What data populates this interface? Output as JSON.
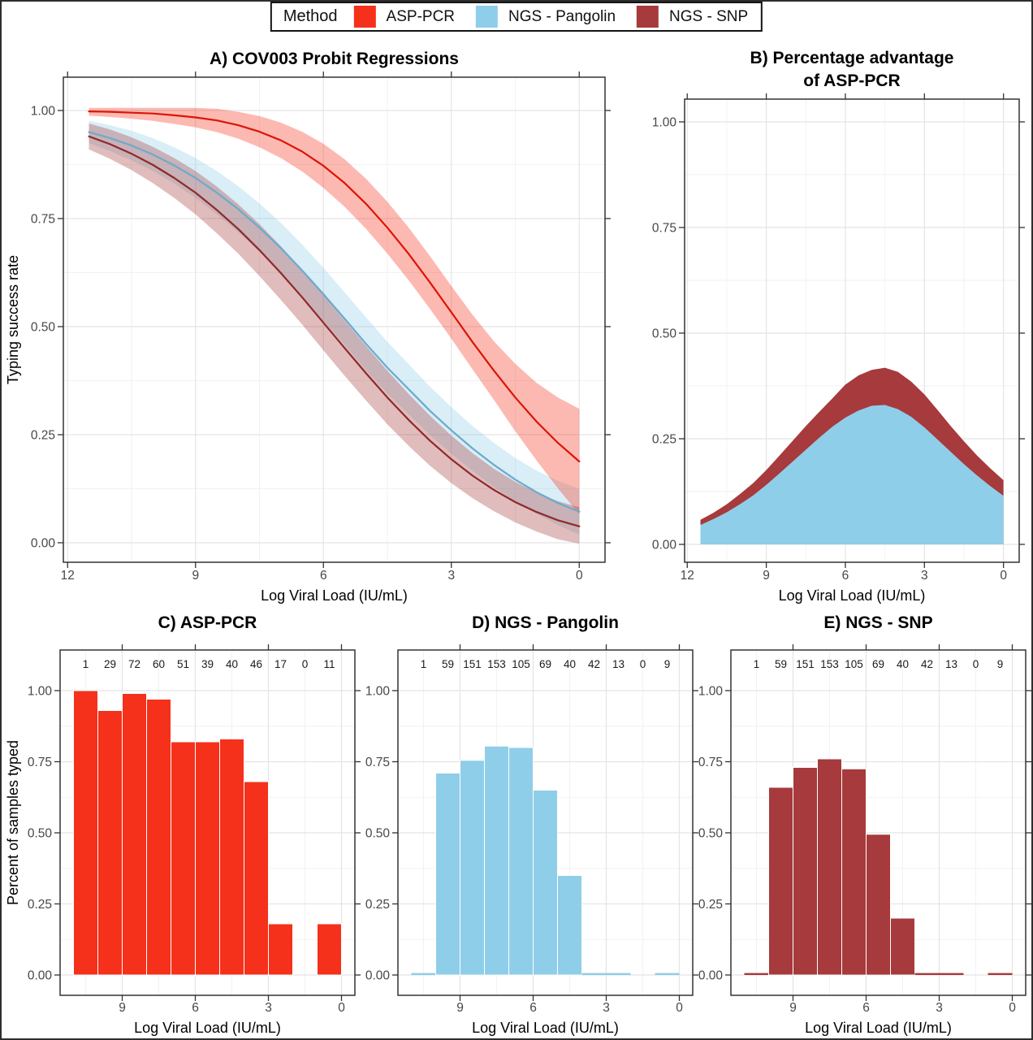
{
  "figure": {
    "legend": {
      "title": "Method",
      "items": [
        {
          "label": "ASP-PCR",
          "color": "#F5311B"
        },
        {
          "label": "NGS - Pangolin",
          "color": "#8FCEE8"
        },
        {
          "label": "NGS - SNP",
          "color": "#A63A3C"
        }
      ]
    }
  },
  "chart_data": [
    {
      "id": "A",
      "type": "line",
      "title": "A) COV003 Probit Regressions",
      "xlabel": "Log Viral Load (IU/mL)",
      "ylabel": "Typing success rate",
      "xlim": [
        12,
        0
      ],
      "ylim": [
        0,
        1
      ],
      "xticks": [
        12,
        9,
        6,
        3,
        0
      ],
      "yticks": [
        0,
        0.25,
        0.5,
        0.75,
        1
      ],
      "grid": true,
      "x": [
        11.5,
        11,
        10.5,
        10,
        9.5,
        9,
        8.5,
        8,
        7.5,
        7,
        6.5,
        6,
        5.5,
        5,
        4.5,
        4,
        3.5,
        3,
        2.5,
        2,
        1.5,
        1,
        0.5,
        0
      ],
      "series": [
        {
          "name": "NGS - Pangolin",
          "color": "#8FCEE8",
          "line_color": "#6CAACB",
          "y": [
            0.95,
            0.936,
            0.919,
            0.898,
            0.873,
            0.844,
            0.81,
            0.772,
            0.729,
            0.682,
            0.63,
            0.575,
            0.518,
            0.46,
            0.405,
            0.355,
            0.305,
            0.26,
            0.218,
            0.18,
            0.146,
            0.117,
            0.092,
            0.072
          ],
          "band_halfwidth": [
            0.026,
            0.03,
            0.034,
            0.038,
            0.042,
            0.046,
            0.05,
            0.053,
            0.056,
            0.058,
            0.06,
            0.061,
            0.061,
            0.061,
            0.06,
            0.058,
            0.056,
            0.054,
            0.052,
            0.051,
            0.05,
            0.05,
            0.051,
            0.053
          ]
        },
        {
          "name": "NGS - SNP",
          "color": "#A63A3C",
          "line_color": "#8E2A2C",
          "y": [
            0.94,
            0.922,
            0.9,
            0.874,
            0.844,
            0.81,
            0.77,
            0.726,
            0.677,
            0.624,
            0.568,
            0.509,
            0.45,
            0.392,
            0.336,
            0.284,
            0.236,
            0.193,
            0.155,
            0.122,
            0.094,
            0.071,
            0.052,
            0.038
          ],
          "band_halfwidth": [
            0.03,
            0.034,
            0.038,
            0.042,
            0.046,
            0.05,
            0.054,
            0.057,
            0.06,
            0.062,
            0.063,
            0.064,
            0.064,
            0.063,
            0.062,
            0.06,
            0.058,
            0.055,
            0.052,
            0.049,
            0.047,
            0.045,
            0.044,
            0.044
          ]
        },
        {
          "name": "ASP-PCR",
          "color": "#F5311B",
          "line_color": "#DB1507",
          "y": [
            0.998,
            0.997,
            0.995,
            0.993,
            0.989,
            0.984,
            0.977,
            0.966,
            0.951,
            0.931,
            0.905,
            0.872,
            0.832,
            0.784,
            0.729,
            0.668,
            0.602,
            0.533,
            0.464,
            0.398,
            0.336,
            0.28,
            0.231,
            0.188
          ],
          "band_halfwidth": [
            0.01,
            0.012,
            0.014,
            0.017,
            0.02,
            0.023,
            0.027,
            0.031,
            0.036,
            0.041,
            0.046,
            0.051,
            0.055,
            0.058,
            0.06,
            0.061,
            0.061,
            0.061,
            0.063,
            0.068,
            0.078,
            0.09,
            0.105,
            0.122
          ]
        }
      ]
    },
    {
      "id": "B",
      "type": "area",
      "title": "B) Percentage advantage\nof ASP-PCR",
      "xlabel": "Log Viral Load (IU/mL)",
      "ylabel": "",
      "xlim": [
        12,
        0
      ],
      "ylim": [
        0,
        1
      ],
      "xticks": [
        12,
        9,
        6,
        3,
        0
      ],
      "yticks": [
        0,
        0.25,
        0.5,
        0.75,
        1
      ],
      "grid": true,
      "x": [
        11.5,
        11,
        10.5,
        10,
        9.5,
        9,
        8.5,
        8,
        7.5,
        7,
        6.5,
        6,
        5.5,
        5,
        4.5,
        4,
        3.5,
        3,
        2.5,
        2,
        1.5,
        1,
        0.5,
        0
      ],
      "series": [
        {
          "name": "advantage vs NGS - SNP",
          "color": "#A63A3C",
          "y": [
            0.058,
            0.075,
            0.095,
            0.119,
            0.145,
            0.176,
            0.21,
            0.245,
            0.28,
            0.313,
            0.345,
            0.378,
            0.4,
            0.413,
            0.418,
            0.408,
            0.385,
            0.355,
            0.318,
            0.28,
            0.244,
            0.21,
            0.18,
            0.152
          ]
        },
        {
          "name": "advantage vs NGS - Pangolin",
          "color": "#8FCEE8",
          "y": [
            0.046,
            0.06,
            0.076,
            0.095,
            0.116,
            0.141,
            0.168,
            0.196,
            0.224,
            0.252,
            0.278,
            0.3,
            0.317,
            0.328,
            0.33,
            0.32,
            0.302,
            0.277,
            0.248,
            0.219,
            0.19,
            0.163,
            0.138,
            0.115
          ]
        }
      ]
    },
    {
      "id": "C",
      "type": "bar",
      "title": "C) ASP-PCR",
      "xlabel": "Log Viral Load (IU/mL)",
      "ylabel": "Percent of samples typed",
      "xlim": [
        11,
        0
      ],
      "ylim": [
        0,
        1
      ],
      "xticks": [
        9,
        6,
        3,
        0
      ],
      "yticks": [
        0,
        0.25,
        0.5,
        0.75,
        1
      ],
      "grid": true,
      "bar_color": "#F5311B",
      "bin_width": 1,
      "bin_centers": [
        10.5,
        9.5,
        8.5,
        7.5,
        6.5,
        5.5,
        4.5,
        3.5,
        2.5,
        1.5,
        0.5
      ],
      "counts": [
        1,
        29,
        72,
        60,
        51,
        39,
        40,
        46,
        17,
        0,
        11
      ],
      "values": [
        1.0,
        0.93,
        0.99,
        0.97,
        0.82,
        0.82,
        0.83,
        0.68,
        0.18,
        null,
        0.18
      ]
    },
    {
      "id": "D",
      "type": "bar",
      "title": "D) NGS - Pangolin",
      "xlabel": "Log Viral Load (IU/mL)",
      "ylabel": "",
      "xlim": [
        11,
        0
      ],
      "ylim": [
        0,
        1
      ],
      "xticks": [
        9,
        6,
        3,
        0
      ],
      "yticks": [
        0,
        0.25,
        0.5,
        0.75,
        1
      ],
      "grid": true,
      "bar_color": "#8FCEE8",
      "bin_width": 1,
      "bin_centers": [
        10.5,
        9.5,
        8.5,
        7.5,
        6.5,
        5.5,
        4.5,
        3.5,
        2.5,
        1.5,
        0.5
      ],
      "counts": [
        1,
        59,
        151,
        153,
        105,
        69,
        40,
        42,
        13,
        0,
        9
      ],
      "values": [
        0.0,
        0.71,
        0.755,
        0.805,
        0.8,
        0.65,
        0.35,
        0.0,
        0.0,
        null,
        0.0
      ]
    },
    {
      "id": "E",
      "type": "bar",
      "title": "E) NGS - SNP",
      "xlabel": "Log Viral Load (IU/mL)",
      "ylabel": "",
      "xlim": [
        11,
        0
      ],
      "ylim": [
        0,
        1
      ],
      "xticks": [
        9,
        6,
        3,
        0
      ],
      "yticks": [
        0,
        0.25,
        0.5,
        0.75,
        1
      ],
      "grid": true,
      "bar_color": "#A63A3C",
      "bin_width": 1,
      "bin_centers": [
        10.5,
        9.5,
        8.5,
        7.5,
        6.5,
        5.5,
        4.5,
        3.5,
        2.5,
        1.5,
        0.5
      ],
      "counts": [
        1,
        59,
        151,
        153,
        105,
        69,
        40,
        42,
        13,
        0,
        9
      ],
      "values": [
        0.0,
        0.66,
        0.73,
        0.76,
        0.725,
        0.495,
        0.2,
        0.0,
        0.0,
        null,
        0.0
      ]
    }
  ]
}
